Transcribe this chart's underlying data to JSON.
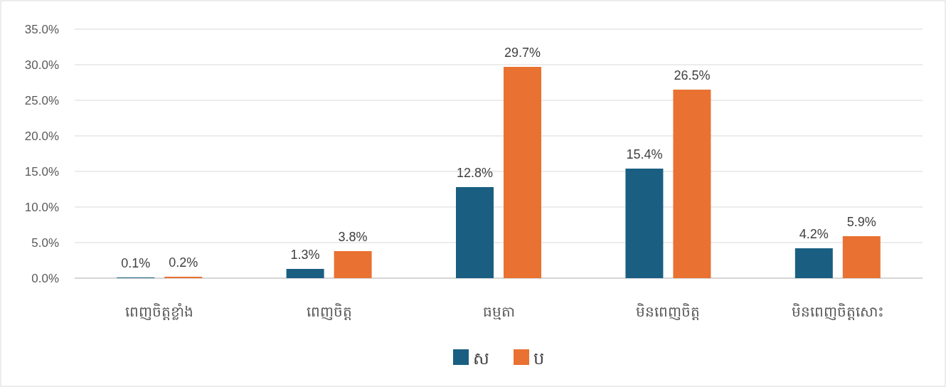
{
  "chart_data": {
    "type": "bar",
    "categories": [
      "ពេញចិត្តខ្លាំង",
      "ពេញចិត្ត",
      "ធម្មតា",
      "មិនពេញចិត្ត",
      "មិនពេញចិត្តសោះ"
    ],
    "series": [
      {
        "name": "ស",
        "color": "#1a5f82",
        "values": [
          0.1,
          1.3,
          12.8,
          15.4,
          4.2
        ],
        "value_labels": [
          "0.1%",
          "1.3%",
          "12.8%",
          "15.4%",
          "4.2%"
        ]
      },
      {
        "name": "ប",
        "color": "#e97132",
        "values": [
          0.2,
          3.8,
          29.7,
          26.5,
          5.9
        ],
        "value_labels": [
          "0.2%",
          "3.8%",
          "29.7%",
          "26.5%",
          "5.9%"
        ]
      }
    ],
    "ylim": [
      0,
      35
    ],
    "yticks": [
      {
        "value": 0,
        "label": "0.0%"
      },
      {
        "value": 5,
        "label": "5.0%"
      },
      {
        "value": 10,
        "label": "10.0%"
      },
      {
        "value": 15,
        "label": "15.0%"
      },
      {
        "value": 20,
        "label": "20.0%"
      },
      {
        "value": 25,
        "label": "25.0%"
      },
      {
        "value": 30,
        "label": "30.0%"
      },
      {
        "value": 35,
        "label": "35.0%"
      }
    ],
    "grid": "y",
    "legend": "bottom"
  }
}
